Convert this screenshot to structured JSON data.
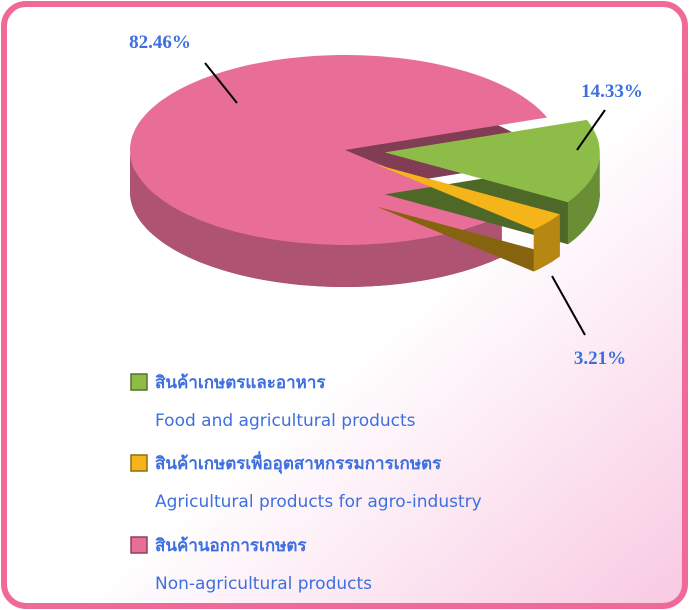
{
  "chart_data": {
    "type": "pie",
    "categories": [
      "สินค้าเกษตรและอาหาร",
      "สินค้าเกษตรเพื่ออุตสาหกรรมการเกษตร",
      "สินค้านอกการเกษตร"
    ],
    "categories_en": [
      "Food and agricultural products",
      "Agricultural products for agro-industry",
      "Non-agricultural products"
    ],
    "values": [
      14.33,
      3.21,
      82.46
    ],
    "value_labels": [
      "14.33%",
      "3.21%",
      "82.46%"
    ],
    "colors": [
      "#8dbd48",
      "#f4b41a",
      "#e86e98"
    ]
  }
}
